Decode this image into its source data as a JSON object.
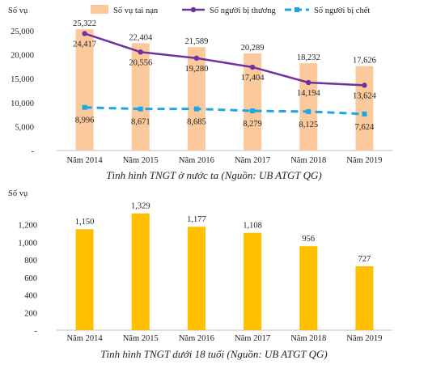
{
  "chart_data": [
    {
      "type": "bar",
      "ylabel": "Số vụ",
      "categories": [
        "Năm 2014",
        "Năm 2015",
        "Năm 2016",
        "Năm 2017",
        "Năm 2018",
        "Năm 2019"
      ],
      "ylim": [
        0,
        25000
      ],
      "yticks": [
        "-",
        "5,000",
        "10,000",
        "15,000",
        "20,000",
        "25,000"
      ],
      "legend_position": "top",
      "series": [
        {
          "name": "Số vụ tai nạn",
          "kind": "bar",
          "color": "#FBC99C",
          "values": [
            25322,
            22404,
            21589,
            20289,
            18232,
            17626
          ],
          "labels": [
            "25,322",
            "22,404",
            "21,589",
            "20,289",
            "18,232",
            "17,626"
          ]
        },
        {
          "name": "Số người bị thương",
          "kind": "line",
          "color": "#7030A0",
          "values": [
            24417,
            20556,
            19280,
            17404,
            14194,
            13624
          ],
          "labels": [
            "24,417",
            "20,556",
            "19,280",
            "17,404",
            "14,194",
            "13,624"
          ]
        },
        {
          "name": "Số người bị chết",
          "kind": "dashed-line",
          "color": "#1CA7E3",
          "values": [
            8996,
            8671,
            8685,
            8279,
            8125,
            7624
          ],
          "labels": [
            "8,996",
            "8,671",
            "8,685",
            "8,279",
            "8,125",
            "7,624"
          ]
        }
      ],
      "caption": "Tình hình TNGT ở nước ta (Nguồn: UB ATGT QG)"
    },
    {
      "type": "bar",
      "ylabel": "Số vụ",
      "categories": [
        "Năm 2014",
        "Năm 2015",
        "Năm 2016",
        "Năm 2017",
        "Năm 2018",
        "Năm 2019"
      ],
      "ylim": [
        0,
        1400
      ],
      "yticks": [
        "-",
        "200",
        "400",
        "600",
        "800",
        "1,000",
        "1,200"
      ],
      "series": [
        {
          "kind": "bar",
          "color": "#FFC000",
          "values": [
            1150,
            1329,
            1177,
            1108,
            956,
            727
          ],
          "labels": [
            "1,150",
            "1,329",
            "1,177",
            "1,108",
            "956",
            "727"
          ]
        }
      ],
      "caption": "Tình hình TNGT dưới 18 tuổi (Nguồn: UB ATGT QG)"
    }
  ]
}
